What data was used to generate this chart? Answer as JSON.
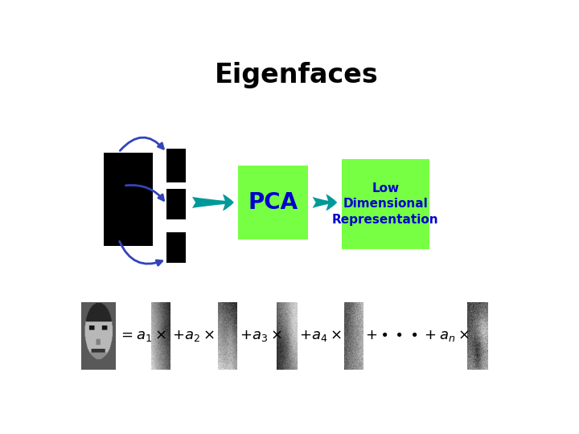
{
  "title": "Eigenfaces",
  "title_fontsize": 24,
  "title_fontweight": "bold",
  "bg_color": "#ffffff",
  "pca_box_color": "#77ff44",
  "pca_text": "PCA",
  "pca_text_color": "#0000cc",
  "pca_text_fontsize": 20,
  "lowdim_box_color": "#77ff44",
  "lowdim_text": "Low\nDimensional\nRepresentation",
  "lowdim_text_color": "#0000cc",
  "lowdim_text_fontsize": 11,
  "arrow_color": "#009999",
  "matrix_color": "#000000",
  "curve_color": "#3344bb",
  "dots_color": "#000000",
  "formula_color": "#000000",
  "formula_fontsize": 13,
  "fig_w": 7.2,
  "fig_h": 5.4,
  "dpi": 100
}
